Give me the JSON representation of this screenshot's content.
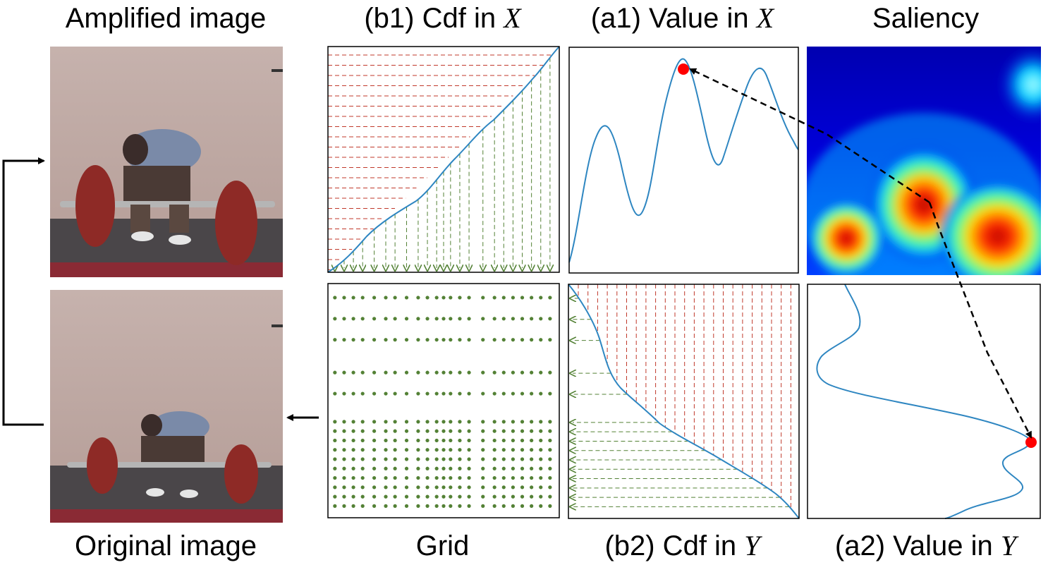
{
  "labels": {
    "amplified": "Amplified image",
    "original": "Original image",
    "b1_prefix": "(b1) Cdf in ",
    "a1_prefix": "(a1) Value in ",
    "b2_prefix": "(b2) Cdf in ",
    "a2_prefix": "(a2) Value in ",
    "var_x": "X",
    "var_y": "Y",
    "saliency": "Saliency",
    "grid": "Grid"
  },
  "colors": {
    "curve": "#2e86c1",
    "red_dash": "#c0392b",
    "green": "#538135",
    "marker": "#ff0000",
    "arrow": "#000000"
  },
  "grid_columns": [
    0.03,
    0.07,
    0.11,
    0.15,
    0.2,
    0.25,
    0.29,
    0.34,
    0.39,
    0.43,
    0.47,
    0.5,
    0.53,
    0.57,
    0.61,
    0.67,
    0.72,
    0.76,
    0.8,
    0.84,
    0.88,
    0.92,
    0.96
  ],
  "grid_rows": [
    0.06,
    0.15,
    0.24,
    0.38,
    0.47,
    0.59,
    0.63,
    0.67,
    0.71,
    0.75,
    0.79,
    0.83,
    0.87,
    0.91,
    0.95
  ]
}
